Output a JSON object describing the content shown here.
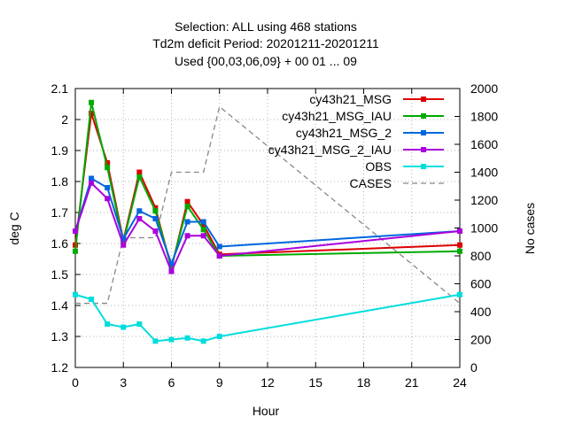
{
  "chart_data": {
    "type": "line",
    "title_lines": [
      "Selection: ALL using   468 stations",
      "Td2m deficit   Period: 20201211-20201211",
      "Used {00,03,06,09} + 00 01 ... 09"
    ],
    "xlabel": "Hour",
    "ylabel": "deg C",
    "y2label": "No cases",
    "xlim": [
      0,
      24
    ],
    "ylim": [
      1.2,
      2.1
    ],
    "y2lim": [
      0,
      2000
    ],
    "xticks": [
      "0",
      "3",
      "6",
      "9",
      "12",
      "15",
      "18",
      "21",
      "24"
    ],
    "yticks": [
      "1.2",
      "1.3",
      "1.4",
      "1.5",
      "1.6",
      "1.7",
      "1.8",
      "1.9",
      "2",
      "2.1"
    ],
    "y2ticks": [
      "0",
      "200",
      "400",
      "600",
      "800",
      "1000",
      "1200",
      "1400",
      "1600",
      "1800",
      "2000"
    ],
    "grid": true,
    "legend_position": "top-right",
    "x": [
      0,
      1,
      2,
      3,
      4,
      5,
      6,
      7,
      8,
      9,
      24
    ],
    "series": [
      {
        "name": "cy43h21_MSG",
        "color": "#dd0000",
        "marker": "square",
        "values": [
          1.595,
          2.02,
          1.86,
          1.61,
          1.83,
          1.715,
          1.52,
          1.735,
          1.66,
          1.565,
          1.595
        ]
      },
      {
        "name": "cy43h21_MSG_IAU",
        "color": "#00aa00",
        "marker": "square",
        "values": [
          1.575,
          2.055,
          1.845,
          1.605,
          1.815,
          1.705,
          1.525,
          1.72,
          1.645,
          1.56,
          1.575
        ]
      },
      {
        "name": "cy43h21_MSG_2",
        "color": "#0066dd",
        "marker": "square",
        "values": [
          1.64,
          1.81,
          1.78,
          1.615,
          1.705,
          1.68,
          1.535,
          1.67,
          1.67,
          1.59,
          1.64
        ]
      },
      {
        "name": "cy43h21_MSG_2_IAU",
        "color": "#aa00dd",
        "marker": "square",
        "values": [
          1.64,
          1.795,
          1.745,
          1.595,
          1.68,
          1.64,
          1.51,
          1.625,
          1.625,
          1.56,
          1.64
        ]
      },
      {
        "name": "OBS",
        "color": "#00dddd",
        "marker": "square",
        "values": [
          1.435,
          1.42,
          1.34,
          1.33,
          1.34,
          1.285,
          1.29,
          1.295,
          1.285,
          1.3,
          1.435
        ]
      }
    ],
    "cases": {
      "name": "CASES",
      "color": "#888888",
      "axis": "y2",
      "x": [
        0,
        1,
        2,
        3,
        4,
        5,
        6,
        7,
        8,
        9,
        24
      ],
      "values": [
        460,
        460,
        460,
        930,
        930,
        930,
        1400,
        1400,
        1400,
        1870,
        460
      ]
    }
  }
}
